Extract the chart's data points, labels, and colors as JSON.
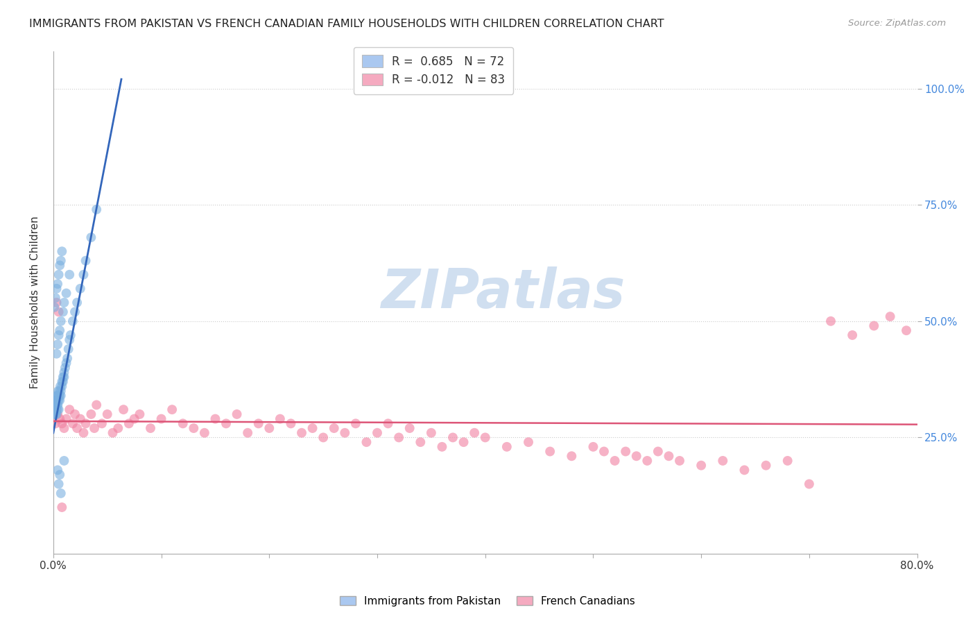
{
  "title": "IMMIGRANTS FROM PAKISTAN VS FRENCH CANADIAN FAMILY HOUSEHOLDS WITH CHILDREN CORRELATION CHART",
  "source": "Source: ZipAtlas.com",
  "ylabel": "Family Households with Children",
  "yticks": [
    "100.0%",
    "75.0%",
    "50.0%",
    "25.0%"
  ],
  "ytick_vals": [
    1.0,
    0.75,
    0.5,
    0.25
  ],
  "xmin": 0.0,
  "xmax": 0.8,
  "ymin": 0.0,
  "ymax": 1.08,
  "legend1_label": "R =  0.685   N = 72",
  "legend2_label": "R = -0.012   N = 83",
  "legend1_color": "#aac8f0",
  "legend2_color": "#f5aac0",
  "scatter1_color": "#7ab0e0",
  "scatter2_color": "#f080a0",
  "line1_color": "#3366bb",
  "line2_color": "#dd5577",
  "watermark_color": "#d0dff0",
  "background_color": "#ffffff",
  "scatter1_x": [
    0.0005,
    0.0008,
    0.001,
    0.0012,
    0.0015,
    0.0018,
    0.002,
    0.002,
    0.0022,
    0.0025,
    0.0028,
    0.003,
    0.003,
    0.003,
    0.0032,
    0.0035,
    0.0038,
    0.004,
    0.004,
    0.0042,
    0.0045,
    0.005,
    0.005,
    0.005,
    0.0055,
    0.006,
    0.006,
    0.0065,
    0.007,
    0.007,
    0.008,
    0.008,
    0.009,
    0.009,
    0.01,
    0.01,
    0.011,
    0.012,
    0.013,
    0.014,
    0.015,
    0.016,
    0.018,
    0.02,
    0.022,
    0.025,
    0.028,
    0.03,
    0.035,
    0.04,
    0.001,
    0.002,
    0.003,
    0.004,
    0.005,
    0.006,
    0.007,
    0.008,
    0.003,
    0.004,
    0.005,
    0.006,
    0.007,
    0.009,
    0.01,
    0.012,
    0.015,
    0.004,
    0.005,
    0.006,
    0.007,
    0.01
  ],
  "scatter1_y": [
    0.3,
    0.31,
    0.32,
    0.3,
    0.33,
    0.31,
    0.3,
    0.32,
    0.31,
    0.33,
    0.32,
    0.31,
    0.33,
    0.3,
    0.34,
    0.32,
    0.33,
    0.31,
    0.34,
    0.32,
    0.35,
    0.33,
    0.31,
    0.34,
    0.35,
    0.34,
    0.33,
    0.36,
    0.35,
    0.34,
    0.37,
    0.36,
    0.38,
    0.37,
    0.39,
    0.38,
    0.4,
    0.41,
    0.42,
    0.44,
    0.46,
    0.47,
    0.5,
    0.52,
    0.54,
    0.57,
    0.6,
    0.63,
    0.68,
    0.74,
    0.53,
    0.55,
    0.57,
    0.58,
    0.6,
    0.62,
    0.63,
    0.65,
    0.43,
    0.45,
    0.47,
    0.48,
    0.5,
    0.52,
    0.54,
    0.56,
    0.6,
    0.18,
    0.15,
    0.17,
    0.13,
    0.2
  ],
  "scatter2_x": [
    0.002,
    0.004,
    0.006,
    0.008,
    0.01,
    0.012,
    0.015,
    0.018,
    0.02,
    0.022,
    0.025,
    0.028,
    0.03,
    0.035,
    0.038,
    0.04,
    0.045,
    0.05,
    0.055,
    0.06,
    0.065,
    0.07,
    0.075,
    0.08,
    0.09,
    0.1,
    0.11,
    0.12,
    0.13,
    0.14,
    0.15,
    0.16,
    0.17,
    0.18,
    0.19,
    0.2,
    0.21,
    0.22,
    0.23,
    0.24,
    0.25,
    0.26,
    0.27,
    0.28,
    0.29,
    0.3,
    0.31,
    0.32,
    0.33,
    0.34,
    0.35,
    0.36,
    0.37,
    0.38,
    0.39,
    0.4,
    0.42,
    0.44,
    0.46,
    0.48,
    0.5,
    0.51,
    0.52,
    0.53,
    0.54,
    0.55,
    0.56,
    0.57,
    0.58,
    0.6,
    0.62,
    0.64,
    0.66,
    0.68,
    0.7,
    0.72,
    0.74,
    0.76,
    0.775,
    0.79,
    0.003,
    0.005,
    0.008
  ],
  "scatter2_y": [
    0.28,
    0.3,
    0.29,
    0.28,
    0.27,
    0.29,
    0.31,
    0.28,
    0.3,
    0.27,
    0.29,
    0.26,
    0.28,
    0.3,
    0.27,
    0.32,
    0.28,
    0.3,
    0.26,
    0.27,
    0.31,
    0.28,
    0.29,
    0.3,
    0.27,
    0.29,
    0.31,
    0.28,
    0.27,
    0.26,
    0.29,
    0.28,
    0.3,
    0.26,
    0.28,
    0.27,
    0.29,
    0.28,
    0.26,
    0.27,
    0.25,
    0.27,
    0.26,
    0.28,
    0.24,
    0.26,
    0.28,
    0.25,
    0.27,
    0.24,
    0.26,
    0.23,
    0.25,
    0.24,
    0.26,
    0.25,
    0.23,
    0.24,
    0.22,
    0.21,
    0.23,
    0.22,
    0.2,
    0.22,
    0.21,
    0.2,
    0.22,
    0.21,
    0.2,
    0.19,
    0.2,
    0.18,
    0.19,
    0.2,
    0.15,
    0.5,
    0.47,
    0.49,
    0.51,
    0.48,
    0.54,
    0.52,
    0.1
  ],
  "line1_x": [
    0.0,
    0.063
  ],
  "line1_y": [
    0.26,
    1.02
  ],
  "line2_x": [
    0.0,
    0.8
  ],
  "line2_y": [
    0.285,
    0.278
  ],
  "xtick_positions": [
    0.0,
    0.1,
    0.2,
    0.3,
    0.4,
    0.5,
    0.6,
    0.7,
    0.8
  ],
  "xtick_show_labels": [
    true,
    false,
    false,
    false,
    false,
    false,
    false,
    false,
    true
  ]
}
